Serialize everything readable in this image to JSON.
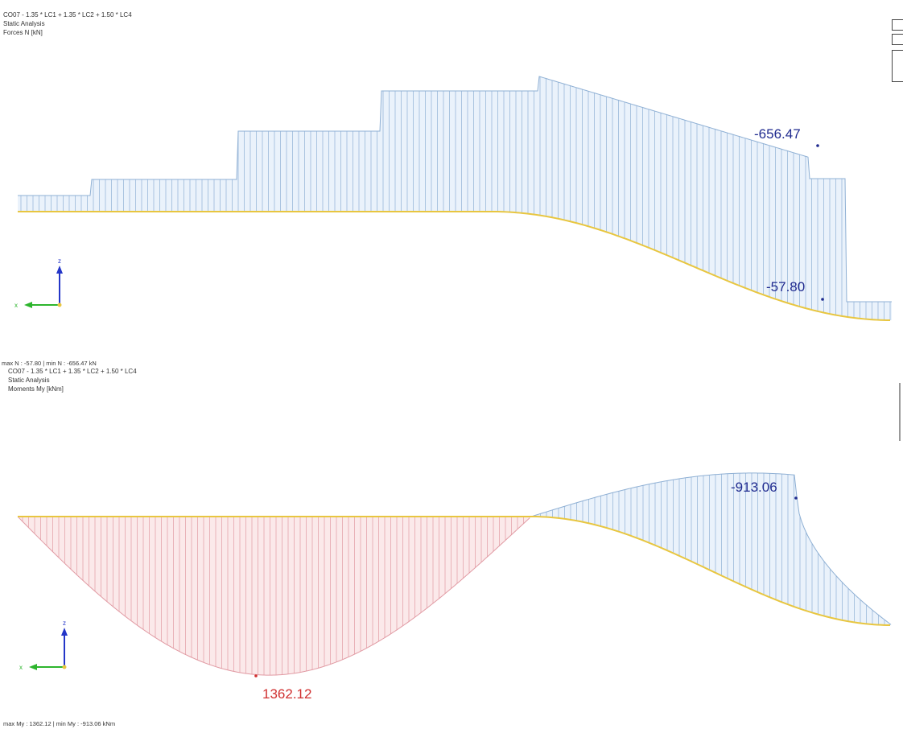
{
  "diagram_top": {
    "header": {
      "combination": "CO07 - 1.35 * LC1 + 1.35 * LC2 + 1.50 * LC4",
      "analysis": "Static Analysis",
      "result": "Forces N [kN]"
    },
    "footer": "max N : -57.80 | min N : -656.47 kN",
    "labels": {
      "min_value": "-656.47",
      "max_value": "-57.80"
    },
    "fill_color": "#eaf2fb",
    "hatch_color": "#8fb0d4",
    "label_color": "#1f2a8f"
  },
  "diagram_bottom": {
    "header": {
      "combination": "CO07 - 1.35 * LC1 + 1.35 * LC2 + 1.50 * LC4",
      "analysis": "Static Analysis",
      "result": "Moments My [kNm]"
    },
    "footer": "max My : 1362.12 | min My : -913.06 kNm",
    "labels": {
      "min_value": "-913.06",
      "max_value": "1362.12"
    },
    "positive_fill": "#fbe9ea",
    "positive_hatch": "#e19aa3",
    "negative_fill": "#eaf2fb",
    "negative_hatch": "#8fb0d4",
    "label_pos_color": "#d03030",
    "label_neg_color": "#1f2a8f"
  },
  "member_color": "#e8c640",
  "axes": {
    "x_label": "x",
    "z_label": "z",
    "x_color": "#2db52d",
    "z_color": "#2436c8"
  }
}
